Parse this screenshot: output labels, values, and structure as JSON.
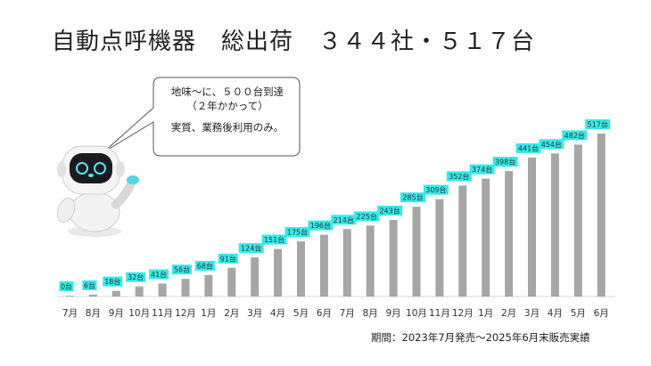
{
  "title": {
    "part1": "自動点呼機器",
    "part2": "総出荷",
    "part3": "３４４社・５１７台"
  },
  "callout": {
    "line1": "地味～に、５００台到達",
    "line2": "（２年かかって）",
    "line3": "実質、業務後利用のみ。"
  },
  "footnote": "期間：2023年7月発売～2025年6月末販売実績",
  "colors": {
    "bar": "#a6a6a6",
    "label_bg": "#33eaea",
    "text": "#222222"
  },
  "illustration": "robot-icon",
  "chart_data": {
    "type": "bar",
    "categories": [
      "7月",
      "8月",
      "9月",
      "10月",
      "11月",
      "12月",
      "1月",
      "2月",
      "3月",
      "4月",
      "5月",
      "6月",
      "7月",
      "8月",
      "9月",
      "10月",
      "11月",
      "12月",
      "1月",
      "2月",
      "3月",
      "4月",
      "5月",
      "6月"
    ],
    "values": [
      0,
      6,
      18,
      32,
      41,
      56,
      68,
      91,
      124,
      151,
      175,
      196,
      214,
      225,
      243,
      285,
      309,
      352,
      374,
      398,
      441,
      454,
      482,
      517
    ],
    "data_labels": [
      "0台",
      "6台",
      "18台",
      "32台",
      "41台",
      "56台",
      "68台",
      "91台",
      "124台",
      "151台",
      "175台",
      "196台",
      "214台",
      "225台",
      "243台",
      "285台",
      "309台",
      "352台",
      "374台",
      "398台",
      "441台",
      "454台",
      "482台",
      "517台"
    ],
    "ylim": [
      0,
      540
    ],
    "grid": false,
    "legend": "none"
  }
}
